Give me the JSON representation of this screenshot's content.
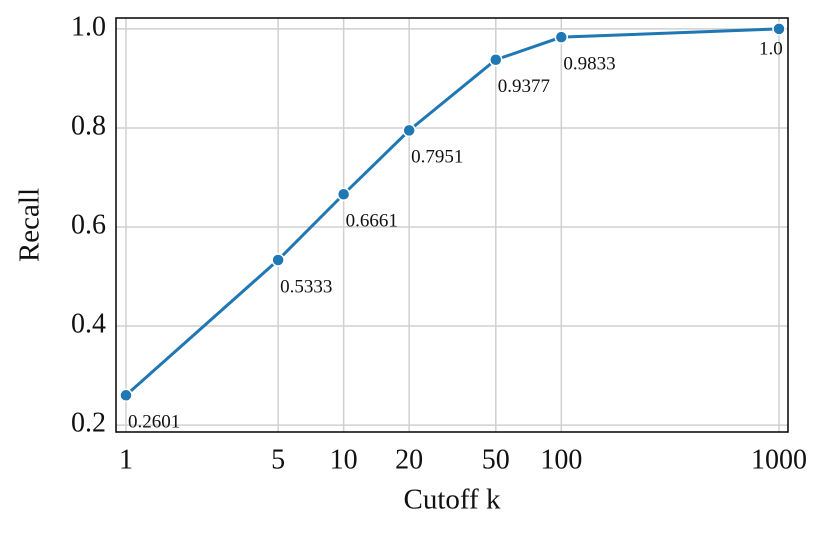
{
  "chart_data": {
    "type": "line",
    "xlabel": "Cutoff k",
    "ylabel": "Recall",
    "x": [
      1,
      5,
      10,
      20,
      50,
      100,
      1000
    ],
    "series": [
      {
        "color": "#1f77b4",
        "values": [
          0.2601,
          0.5333,
          0.6661,
          0.7951,
          0.9377,
          0.9833,
          1.0
        ],
        "value_labels": [
          "0.2601",
          "0.5333",
          "0.6661",
          "0.7951",
          "0.9377",
          "0.9833",
          "1.0"
        ]
      }
    ],
    "xscale": "log",
    "xlim": [
      0.9,
      1100
    ],
    "xticks": [
      1,
      5,
      10,
      20,
      50,
      100,
      1000
    ],
    "ylim": [
      0.186,
      1.022
    ],
    "yticks": [
      0.2,
      0.4,
      0.6,
      0.8,
      {
        "value": 1,
        "label": "1.0"
      }
    ],
    "grid": true
  }
}
